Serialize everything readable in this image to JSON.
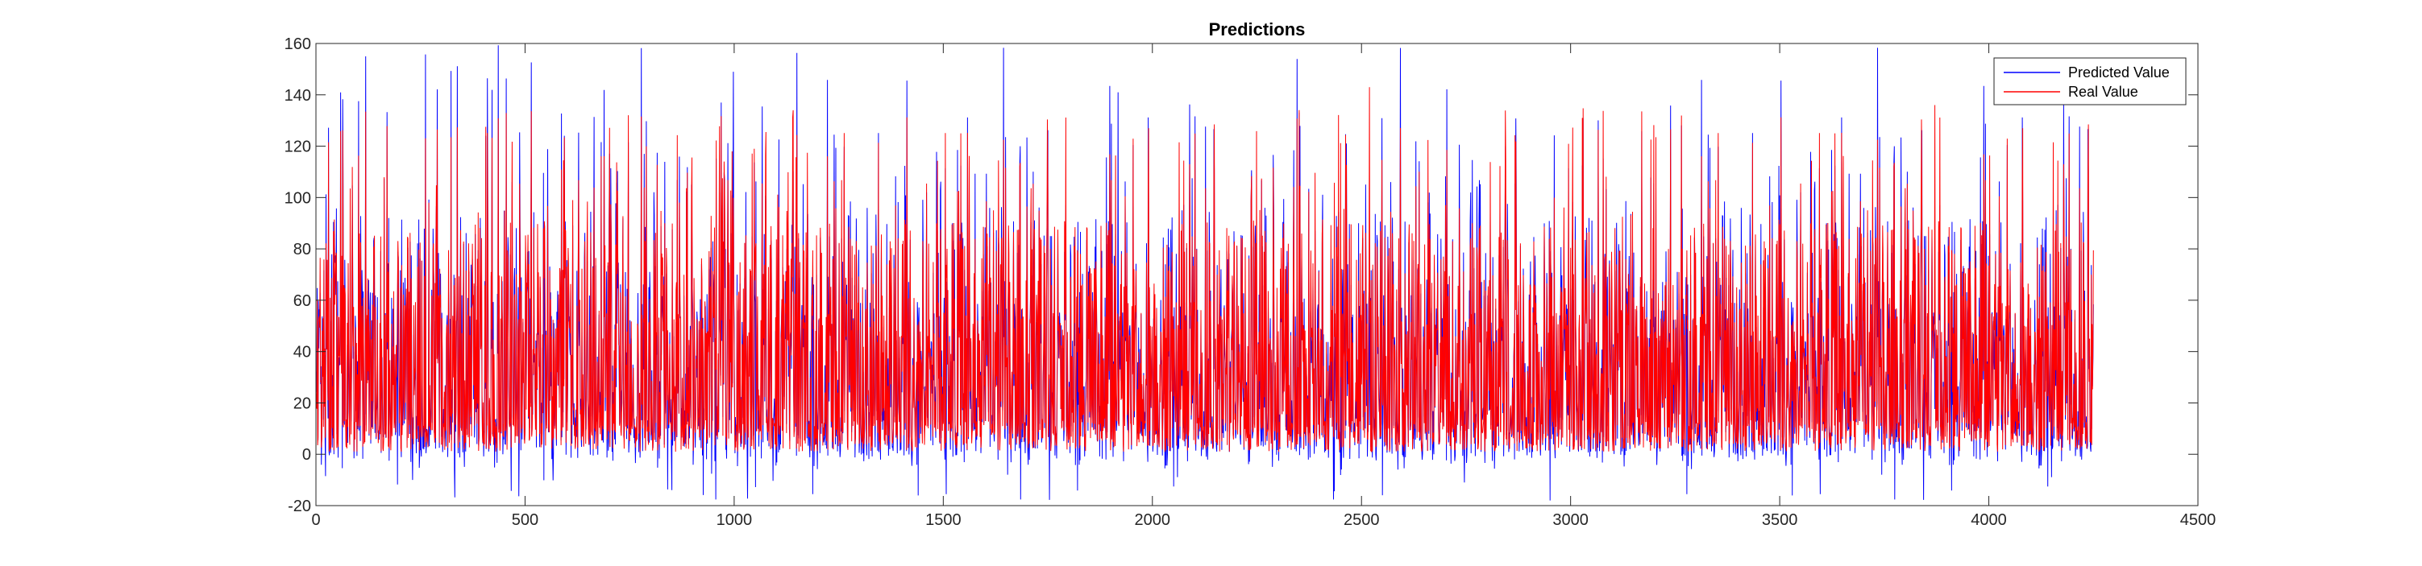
{
  "chart_data": {
    "type": "line",
    "title": "Predictions",
    "xlabel": "",
    "ylabel": "",
    "xlim": [
      0,
      4500
    ],
    "ylim": [
      -20,
      160
    ],
    "x_ticks": [
      0,
      500,
      1000,
      1500,
      2000,
      2500,
      3000,
      3500,
      4000,
      4500
    ],
    "y_ticks": [
      -20,
      0,
      20,
      40,
      60,
      80,
      100,
      120,
      140,
      160
    ],
    "grid": false,
    "legend_position": "top-right",
    "n_points": 4250,
    "series": [
      {
        "name": "Predicted Value",
        "color": "#0000ff",
        "summary": {
          "min": -18,
          "max": 149,
          "typical_range": [
            0,
            90
          ]
        }
      },
      {
        "name": "Real Value",
        "color": "#ff0000",
        "summary": {
          "min": 0,
          "max": 143,
          "typical_range": [
            2,
            95
          ]
        }
      }
    ]
  }
}
